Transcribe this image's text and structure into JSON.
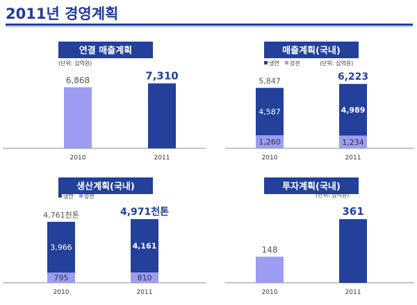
{
  "page": {
    "title": "2011년 경영계획"
  },
  "colors": {
    "dark": "#23409a",
    "light": "#9c9cf2",
    "header": "#23409a",
    "text": "#555555"
  },
  "chart_data": [
    {
      "type": "bar",
      "title": "연결 매출계획",
      "unit_note": "(단위: 십억원)",
      "categories": [
        "2010",
        "2011"
      ],
      "series": [
        {
          "values": [
            6868,
            7310
          ]
        }
      ],
      "value_labels": [
        "6,868",
        "7,310"
      ],
      "bar_colors": [
        "light",
        "dark"
      ],
      "ylim": [
        0,
        7800
      ]
    },
    {
      "type": "bar",
      "stacked": true,
      "title": "매출계획(국내)",
      "unit_note": "(단위: 십억원)",
      "legend": [
        "냉연",
        "강관"
      ],
      "categories": [
        "2010",
        "2011"
      ],
      "series": [
        {
          "name": "강관",
          "values": [
            1260,
            1234
          ],
          "labels": [
            "1,260",
            "1,234"
          ]
        },
        {
          "name": "냉연",
          "values": [
            4587,
            4989
          ],
          "labels": [
            "4,587",
            "4,989"
          ]
        }
      ],
      "totals": [
        "5,847",
        "6,223"
      ],
      "ylim": [
        0,
        6700
      ]
    },
    {
      "type": "bar",
      "stacked": true,
      "title": "생산계획(국내)",
      "legend": [
        "냉연",
        "강관"
      ],
      "categories": [
        "2010",
        "2011"
      ],
      "series": [
        {
          "name": "강관",
          "values": [
            795,
            810
          ],
          "labels": [
            "795",
            "810"
          ]
        },
        {
          "name": "냉연",
          "values": [
            3966,
            4161
          ],
          "labels": [
            "3,966",
            "4,161"
          ]
        }
      ],
      "totals": [
        "4,761천톤",
        "4,971천톤"
      ],
      "ylim": [
        0,
        5300
      ]
    },
    {
      "type": "bar",
      "title": "투자계획(국내)",
      "unit_note": "(단위: 십억원)",
      "categories": [
        "2010",
        "2011"
      ],
      "series": [
        {
          "values": [
            148,
            361
          ]
        }
      ],
      "value_labels": [
        "148",
        "361"
      ],
      "bar_colors": [
        "light",
        "dark"
      ],
      "ylim": [
        0,
        385
      ]
    }
  ]
}
